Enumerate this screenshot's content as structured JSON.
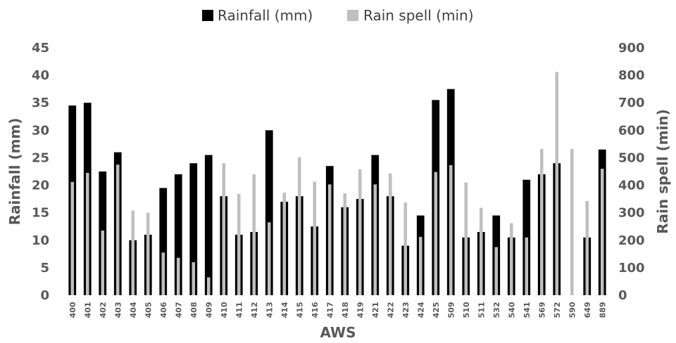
{
  "chart_data": {
    "type": "bar",
    "title": "",
    "xlabel": "AWS",
    "ylabel": "Rainfall (mm)",
    "y2label": "Rain spell (min)",
    "ylim": [
      0,
      45
    ],
    "y2lim": [
      0,
      900
    ],
    "yticks": [
      0,
      5,
      10,
      15,
      20,
      25,
      30,
      35,
      40,
      45
    ],
    "y2ticks": [
      0,
      100,
      200,
      300,
      400,
      500,
      600,
      700,
      800,
      900
    ],
    "grid": false,
    "legend_position": "top-center",
    "categories": [
      "400",
      "401",
      "402",
      "403",
      "404",
      "405",
      "406",
      "407",
      "408",
      "409",
      "410",
      "411",
      "412",
      "413",
      "414",
      "415",
      "416",
      "417",
      "418",
      "419",
      "421",
      "422",
      "423",
      "424",
      "425",
      "509",
      "510",
      "511",
      "532",
      "540",
      "541",
      "569",
      "572",
      "590",
      "649",
      "889"
    ],
    "series": [
      {
        "name": "Rainfall (mm)",
        "axis": "left",
        "color": "#000000",
        "values": [
          34.5,
          35,
          22.5,
          26,
          10,
          11,
          19.5,
          22,
          24,
          25.5,
          18,
          11,
          11.5,
          30,
          17,
          18,
          12.5,
          23.5,
          16,
          17.5,
          25.5,
          18,
          9,
          14.5,
          35.5,
          37.5,
          10.5,
          11.5,
          14.5,
          10.5,
          21,
          22,
          24,
          0,
          10.5,
          26.5
        ]
      },
      {
        "name": "Rain spell (min)",
        "axis": "right",
        "color": "#bfbfbf",
        "values": [
          412,
          445,
          235,
          475,
          308,
          300,
          155,
          136,
          120,
          65,
          480,
          368,
          440,
          265,
          373,
          502,
          413,
          403,
          370,
          458,
          403,
          443,
          337,
          212,
          448,
          473,
          410,
          318,
          175,
          262,
          210,
          532,
          812,
          532,
          343,
          460
        ]
      }
    ]
  }
}
